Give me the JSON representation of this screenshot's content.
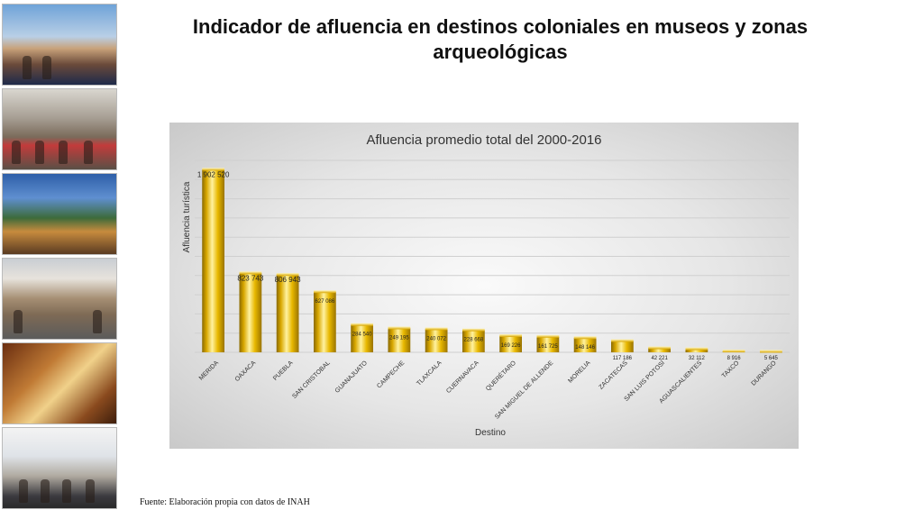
{
  "slide": {
    "title": "Indicador de afluencia en destinos coloniales en museos y zonas arqueológicas",
    "source": "Fuente: Elaboración propia con datos de INAH"
  },
  "chart_data": {
    "type": "bar",
    "title": "Afluencia promedio total del 2000-2016",
    "xlabel": "Destino",
    "ylabel": "Afluencia turística",
    "categories": [
      "MERIDA",
      "OAXACA",
      "PUEBLA",
      "SAN CRISTOBAL",
      "GUANAJUATO",
      "CAMPECHE",
      "TLAXCALA",
      "CUERNAVACA",
      "QUERÉTARO",
      "SAN MIGUEL DE ALLENDE",
      "MORELIA",
      "ZACATECAS",
      "SAN LUIS POTOSÍ",
      "AGUASCALIENTES",
      "TAXCO",
      "DURANGO"
    ],
    "values": [
      1902520,
      823743,
      806943,
      627086,
      284540,
      249195,
      240072,
      228668,
      169226,
      161725,
      148146,
      117186,
      42221,
      32112,
      8916,
      5645
    ],
    "value_labels": [
      "1 902 520",
      "823 743",
      "806 943",
      "627 086",
      "284 540",
      "249 195",
      "240 072",
      "228 668",
      "169 226",
      "161 725",
      "148 146",
      "117 186",
      "42 221",
      "32 112",
      "8 916",
      "5 645"
    ],
    "ylim": [
      0,
      2000000
    ],
    "grid": true,
    "legend": "none",
    "bar_color": "#e0b000"
  }
}
